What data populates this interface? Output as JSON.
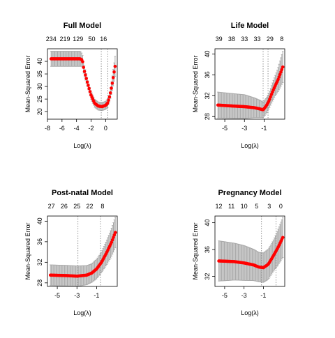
{
  "chart_data": [
    {
      "type": "line",
      "title": "Full Model",
      "xlabel": "Log(λ)",
      "ylabel": "Mean-Squared Error",
      "xlim": [
        -8,
        1.6
      ],
      "ylim": [
        17,
        45
      ],
      "xticks": [
        -8,
        -6,
        -4,
        -2,
        0
      ],
      "yticks": [
        20,
        25,
        30,
        35,
        40
      ],
      "top_x": [
        -7.5,
        -5.6,
        -3.8,
        -1.9,
        -0.3
      ],
      "top_labels": [
        "234",
        "219",
        "129",
        "50",
        "16"
      ],
      "vlines": [
        -0.6,
        0.3
      ],
      "x_start": -7.5,
      "x_end": 1.3,
      "nodes": [
        [
          -7.5,
          41.0
        ],
        [
          -5,
          41.0
        ],
        [
          -3.5,
          41.0
        ],
        [
          -3.2,
          40.5
        ],
        [
          -3.0,
          37.0
        ],
        [
          -2.5,
          31.5
        ],
        [
          -2.0,
          26.5
        ],
        [
          -1.5,
          23.3
        ],
        [
          -1.0,
          22.2
        ],
        [
          -0.5,
          22.0
        ],
        [
          0,
          22.5
        ],
        [
          0.3,
          23.5
        ],
        [
          0.6,
          26.5
        ],
        [
          0.9,
          31.0
        ],
        [
          1.3,
          38.0
        ]
      ],
      "err": [
        [
          -7.5,
          3.0
        ],
        [
          -3.5,
          3.0
        ],
        [
          -3.2,
          2.5
        ],
        [
          -2.5,
          1.8
        ],
        [
          -1.5,
          1.6
        ],
        [
          0,
          1.6
        ],
        [
          0.6,
          2.0
        ],
        [
          1.3,
          4.0
        ]
      ]
    },
    {
      "type": "line",
      "title": "Life Model",
      "xlabel": "Log(λ)",
      "ylabel": "Mean-Squared Error",
      "xlim": [
        -6,
        1.1
      ],
      "ylim": [
        27.5,
        41
      ],
      "xticks": [
        -5,
        -3,
        -1
      ],
      "yticks": [
        28,
        32,
        36,
        40
      ],
      "top_x": [
        -5.6,
        -4.3,
        -3.0,
        -1.7,
        -0.4,
        0.8
      ],
      "top_labels": [
        "39",
        "38",
        "33",
        "33",
        "29",
        "8"
      ],
      "vlines": [
        -1.1,
        -0.6
      ],
      "x_start": -5.7,
      "x_end": 0.9,
      "nodes": [
        [
          -5.7,
          30.2
        ],
        [
          -4,
          30.0
        ],
        [
          -3,
          29.9
        ],
        [
          -2.0,
          29.7
        ],
        [
          -1.5,
          29.5
        ],
        [
          -1.1,
          29.3
        ],
        [
          -0.8,
          30.0
        ],
        [
          -0.5,
          31.0
        ],
        [
          -0.2,
          32.5
        ],
        [
          0.1,
          33.8
        ],
        [
          0.4,
          35.0
        ],
        [
          0.7,
          36.5
        ],
        [
          0.9,
          37.5
        ]
      ],
      "err": [
        [
          -5.7,
          2.5
        ],
        [
          -3,
          2.3
        ],
        [
          -1.5,
          1.7
        ],
        [
          -1.1,
          1.5
        ],
        [
          -0.5,
          1.5
        ],
        [
          0.2,
          2.0
        ],
        [
          0.9,
          3.0
        ]
      ]
    },
    {
      "type": "line",
      "title": "Post-natal Model",
      "xlabel": "Log(λ)",
      "ylabel": "Mean-Squared Error",
      "xlim": [
        -6,
        1.1
      ],
      "ylim": [
        27.3,
        41
      ],
      "xticks": [
        -5,
        -3,
        -1
      ],
      "yticks": [
        28,
        32,
        36,
        40
      ],
      "top_x": [
        -5.6,
        -4.3,
        -3.0,
        -1.7,
        -0.4,
        0.8
      ],
      "top_labels": [
        "27",
        "26",
        "25",
        "22",
        "8",
        ""
      ],
      "vlines": [
        -2.9,
        -0.6
      ],
      "x_start": -5.7,
      "x_end": 0.9,
      "nodes": [
        [
          -5.7,
          29.5
        ],
        [
          -4,
          29.4
        ],
        [
          -3,
          29.3
        ],
        [
          -2.0,
          29.5
        ],
        [
          -1.5,
          29.9
        ],
        [
          -1.0,
          30.7
        ],
        [
          -0.5,
          32.0
        ],
        [
          0,
          33.8
        ],
        [
          0.5,
          35.8
        ],
        [
          0.9,
          37.8
        ]
      ],
      "err": [
        [
          -5.7,
          2.0
        ],
        [
          -3,
          2.0
        ],
        [
          -1.5,
          1.8
        ],
        [
          -0.5,
          2.0
        ],
        [
          0.9,
          3.0
        ]
      ]
    },
    {
      "type": "line",
      "title": "Pregnancy Model",
      "xlabel": "Log(λ)",
      "ylabel": "Mean-Squared Error",
      "xlim": [
        -6,
        1.2
      ],
      "ylim": [
        30.5,
        41
      ],
      "xticks": [
        -5,
        -3,
        -1
      ],
      "yticks": [
        32,
        36,
        40
      ],
      "top_x": [
        -5.6,
        -4.3,
        -3.0,
        -1.7,
        -0.4,
        0.8
      ],
      "top_labels": [
        "12",
        "11",
        "10",
        "5",
        "3",
        "0"
      ],
      "vlines": [
        -1.2,
        0.3
      ],
      "x_start": -5.6,
      "x_end": 1.0,
      "nodes": [
        [
          -5.6,
          34.3
        ],
        [
          -4,
          34.2
        ],
        [
          -3,
          34.0
        ],
        [
          -2.0,
          33.7
        ],
        [
          -1.5,
          33.4
        ],
        [
          -1.0,
          33.3
        ],
        [
          -0.5,
          33.8
        ],
        [
          0,
          35.0
        ],
        [
          0.5,
          36.3
        ],
        [
          1.0,
          37.8
        ]
      ],
      "err": [
        [
          -5.6,
          3.0
        ],
        [
          -3,
          2.6
        ],
        [
          -1.5,
          2.2
        ],
        [
          -1.0,
          2.2
        ],
        [
          0,
          2.3
        ],
        [
          1.0,
          3.0
        ]
      ]
    }
  ]
}
